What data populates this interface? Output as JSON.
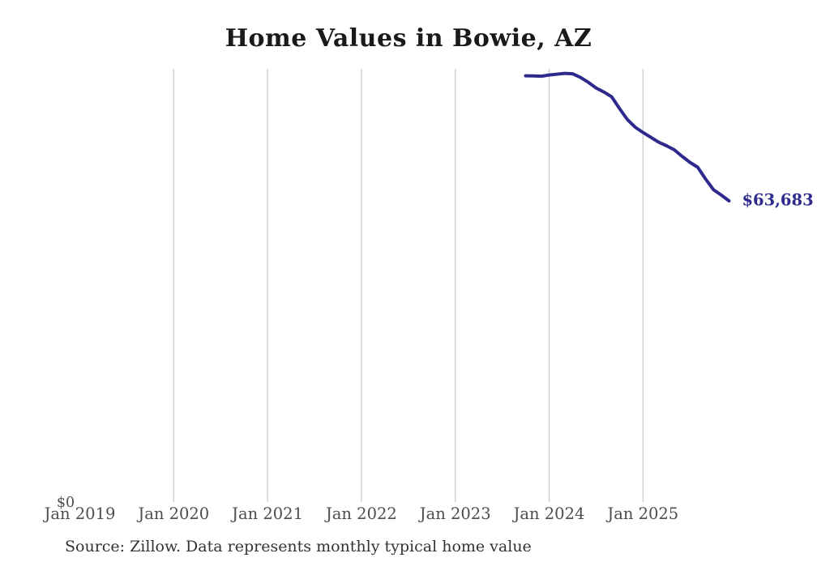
{
  "page": {
    "title": "Home Values in Bowie, AZ",
    "source_note": "Source: Zillow. Data represents monthly typical home value"
  },
  "colors": {
    "background": "#ffffff",
    "line": "#2e2a8d",
    "grid": "#cccccc",
    "title_text": "#1a1a1a",
    "axis_text": "#4d4d4d",
    "source_text": "#333333",
    "end_label_text": "#2e2a8d"
  },
  "chart_data": {
    "type": "line",
    "title": "Home Values in Bowie, AZ",
    "series_name": "Monthly typical home value (USD)",
    "x": [
      "2023-10",
      "2023-11",
      "2023-12",
      "2024-01",
      "2024-02",
      "2024-03",
      "2024-04",
      "2024-05",
      "2024-06",
      "2024-07",
      "2024-08",
      "2024-09",
      "2024-10",
      "2024-11",
      "2024-12",
      "2025-01",
      "2025-02",
      "2025-03",
      "2025-04",
      "2025-05",
      "2025-06",
      "2025-07",
      "2025-08",
      "2025-09",
      "2025-10",
      "2025-11",
      "2025-12"
    ],
    "values": [
      90130,
      90090,
      90040,
      90300,
      90470,
      90640,
      90560,
      89790,
      88760,
      87560,
      86710,
      85680,
      83200,
      80890,
      79260,
      78150,
      77120,
      76090,
      75330,
      74470,
      73100,
      71820,
      70790,
      68310,
      66080,
      64900,
      63683
    ],
    "end_label": "$63,683",
    "y_zero_label": "$0",
    "x_ticks": [
      {
        "label": "Jan 2019",
        "year": 2019,
        "gridline": false
      },
      {
        "label": "Jan 2020",
        "year": 2020,
        "gridline": true
      },
      {
        "label": "Jan 2021",
        "year": 2021,
        "gridline": true
      },
      {
        "label": "Jan 2022",
        "year": 2022,
        "gridline": true
      },
      {
        "label": "Jan 2023",
        "year": 2023,
        "gridline": true
      },
      {
        "label": "Jan 2024",
        "year": 2024,
        "gridline": true
      },
      {
        "label": "Jan 2025",
        "year": 2025,
        "gridline": true
      }
    ],
    "xlabel": "",
    "ylabel": "",
    "ylim": [
      0,
      91600
    ],
    "grid": "vertical-only",
    "legend": "none"
  }
}
